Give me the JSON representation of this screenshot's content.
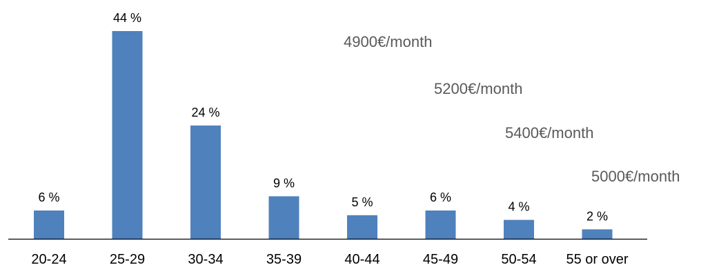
{
  "chart_data": {
    "type": "bar",
    "categories": [
      "20-24",
      "25-29",
      "30-34",
      "35-39",
      "40-44",
      "45-49",
      "50-54",
      "55 or over"
    ],
    "values": [
      6,
      44,
      24,
      9,
      5,
      6,
      4,
      2
    ],
    "value_labels": [
      "6 %",
      "44 %",
      "24 %",
      "9 %",
      "5 %",
      "6 %",
      "4 %",
      "2 %"
    ],
    "unit": "%",
    "ylim": [
      0,
      44
    ],
    "grid": false,
    "legend": "none",
    "colors": {
      "bar": "#4F81BD",
      "axis": "#000000",
      "annotation": "#595959"
    }
  },
  "annotations": [
    "4900€/month",
    "5200€/month",
    "5400€/month",
    "5000€/month"
  ]
}
